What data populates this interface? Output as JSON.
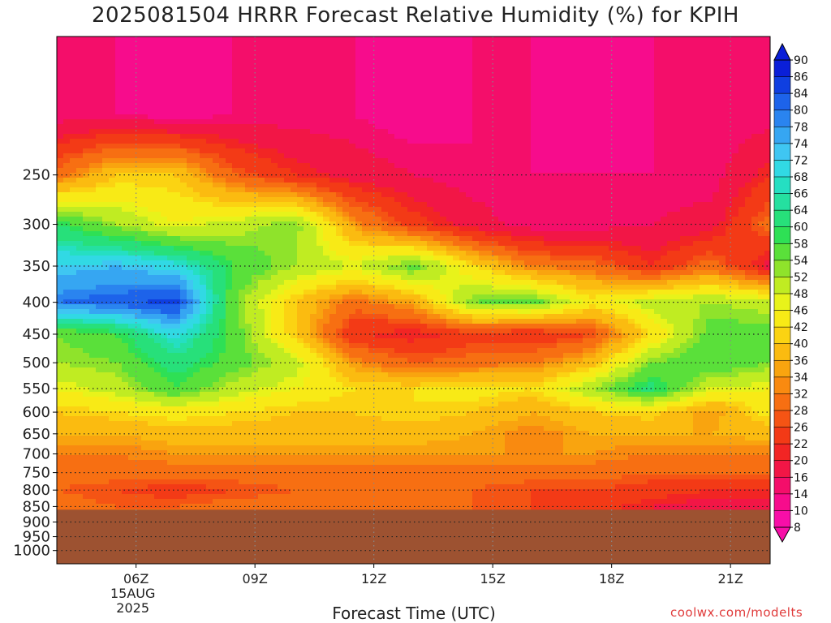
{
  "chart_data": {
    "type": "heatmap",
    "title": "2025081504 HRRR Forecast Relative Humidity (%) for KPIH",
    "xlabel": "Forecast Time (UTC)",
    "ylabel": "",
    "credit": "coolwx.com/modelts",
    "x_ticks": [
      {
        "hour": 6,
        "label": "06Z",
        "sublabels": [
          "15AUG",
          "2025"
        ]
      },
      {
        "hour": 9,
        "label": "09Z",
        "sublabels": []
      },
      {
        "hour": 12,
        "label": "12Z",
        "sublabels": []
      },
      {
        "hour": 15,
        "label": "15Z",
        "sublabels": []
      },
      {
        "hour": 18,
        "label": "18Z",
        "sublabels": []
      },
      {
        "hour": 21,
        "label": "21Z",
        "sublabels": []
      }
    ],
    "xlim": [
      4,
      22
    ],
    "ylim_hpa": [
      1050,
      150
    ],
    "y_scale": "log-pressure",
    "y_ticks": [
      250,
      300,
      350,
      400,
      450,
      500,
      550,
      600,
      650,
      700,
      750,
      800,
      850,
      900,
      950,
      1000
    ],
    "ground_level_hpa": 860,
    "grid": true,
    "colorbar": {
      "placement": "right",
      "levels": [
        90,
        86,
        84,
        80,
        78,
        74,
        72,
        68,
        66,
        64,
        60,
        58,
        54,
        52,
        48,
        46,
        42,
        40,
        36,
        34,
        32,
        28,
        26,
        22,
        20,
        16,
        14,
        10,
        8
      ],
      "colors": [
        "#0a1fd8",
        "#0f3fe0",
        "#1d63ea",
        "#2a84ef",
        "#36a6f2",
        "#3fc6f2",
        "#31d9e4",
        "#25dfc2",
        "#25e0a0",
        "#27e07a",
        "#2ee055",
        "#5ae03a",
        "#8fe32b",
        "#c0ec22",
        "#e8f31a",
        "#f8ea16",
        "#fbd312",
        "#fbbb10",
        "#f9a40f",
        "#f98a10",
        "#f76f12",
        "#f55414",
        "#f33a16",
        "#f22524",
        "#f21646",
        "#f40e6a",
        "#f70c8c",
        "#f70ea8"
      ]
    },
    "series": [
      {
        "hour": 4.0,
        "rh": {
          "200": 14,
          "250": 30,
          "300": 60,
          "350": 72,
          "400": 80,
          "450": 54,
          "500": 52,
          "550": 46,
          "600": 40,
          "650": 36,
          "700": 32,
          "750": 30,
          "800": 28,
          "850": 30
        }
      },
      {
        "hour": 5.5,
        "rh": {
          "200": 14,
          "250": 40,
          "300": 52,
          "350": 74,
          "400": 82,
          "450": 58,
          "500": 54,
          "550": 50,
          "600": 42,
          "650": 36,
          "700": 32,
          "750": 30,
          "800": 26,
          "850": 28
        }
      },
      {
        "hour": 7.0,
        "rh": {
          "200": 12,
          "250": 40,
          "300": 46,
          "350": 70,
          "400": 86,
          "450": 70,
          "500": 62,
          "550": 58,
          "600": 44,
          "650": 38,
          "700": 34,
          "750": 30,
          "800": 24,
          "850": 28
        }
      },
      {
        "hour": 8.5,
        "rh": {
          "200": 14,
          "250": 28,
          "300": 50,
          "350": 58,
          "400": 54,
          "450": 56,
          "500": 56,
          "550": 50,
          "600": 42,
          "650": 38,
          "700": 34,
          "750": 30,
          "800": 26,
          "850": 30
        }
      },
      {
        "hour": 10.0,
        "rh": {
          "200": 14,
          "250": 22,
          "300": 54,
          "350": 52,
          "400": 40,
          "450": 40,
          "500": 50,
          "550": 46,
          "600": 40,
          "650": 38,
          "700": 34,
          "750": 30,
          "800": 28,
          "850": 30
        }
      },
      {
        "hour": 11.5,
        "rh": {
          "200": 14,
          "250": 18,
          "300": 34,
          "350": 48,
          "400": 30,
          "450": 22,
          "500": 34,
          "550": 42,
          "600": 40,
          "650": 38,
          "700": 34,
          "750": 30,
          "800": 28,
          "850": 30
        }
      },
      {
        "hour": 13.0,
        "rh": {
          "200": 12,
          "250": 16,
          "300": 24,
          "350": 56,
          "400": 36,
          "450": 20,
          "500": 28,
          "550": 42,
          "600": 42,
          "650": 38,
          "700": 34,
          "750": 30,
          "800": 28,
          "850": 30
        }
      },
      {
        "hour": 14.5,
        "rh": {
          "200": 14,
          "250": 14,
          "300": 18,
          "350": 42,
          "400": 54,
          "450": 24,
          "500": 30,
          "550": 44,
          "600": 40,
          "650": 36,
          "700": 34,
          "750": 30,
          "800": 28,
          "850": 28
        }
      },
      {
        "hour": 16.0,
        "rh": {
          "200": 14,
          "250": 14,
          "300": 14,
          "350": 32,
          "400": 56,
          "450": 22,
          "500": 32,
          "550": 42,
          "600": 36,
          "650": 32,
          "700": 34,
          "750": 30,
          "800": 26,
          "850": 26
        }
      },
      {
        "hour": 17.5,
        "rh": {
          "200": 12,
          "250": 14,
          "300": 14,
          "350": 30,
          "400": 44,
          "450": 26,
          "500": 38,
          "550": 52,
          "600": 40,
          "650": 36,
          "700": 34,
          "750": 30,
          "800": 26,
          "850": 24
        }
      },
      {
        "hour": 19.0,
        "rh": {
          "200": 14,
          "250": 14,
          "300": 16,
          "350": 22,
          "400": 50,
          "450": 42,
          "500": 54,
          "550": 62,
          "600": 42,
          "650": 36,
          "700": 32,
          "750": 28,
          "800": 24,
          "850": 20
        }
      },
      {
        "hour": 20.5,
        "rh": {
          "200": 14,
          "250": 14,
          "300": 18,
          "350": 30,
          "400": 52,
          "450": 56,
          "500": 58,
          "550": 48,
          "600": 34,
          "650": 36,
          "700": 32,
          "750": 28,
          "800": 22,
          "850": 18
        }
      },
      {
        "hour": 22.0,
        "rh": {
          "200": 14,
          "250": 22,
          "300": 30,
          "350": 18,
          "400": 50,
          "450": 56,
          "500": 54,
          "550": 46,
          "600": 44,
          "650": 38,
          "700": 32,
          "750": 28,
          "800": 22,
          "850": 18
        }
      }
    ]
  }
}
